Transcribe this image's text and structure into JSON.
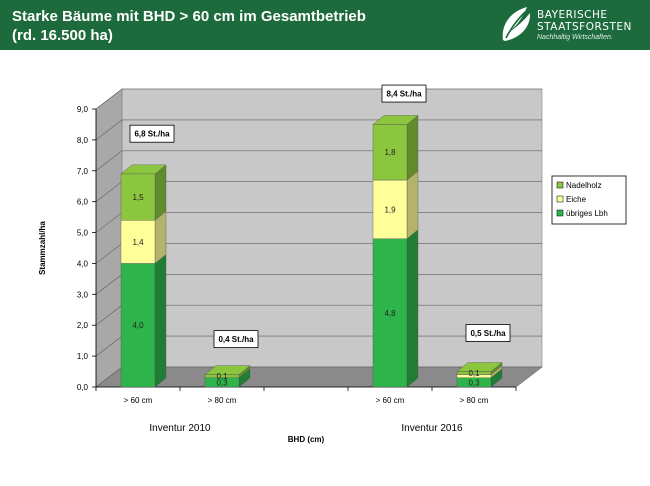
{
  "header": {
    "title_line1": "Starke Bäume mit BHD > 60 cm im Gesamtbetrieb",
    "title_line2": "(rd. 16.500 ha)",
    "logo_line1": "BAYERISCHE",
    "logo_line2": "STAATSFORSTEN",
    "logo_tagline": "Nachhaltig Wirtschaften."
  },
  "colors": {
    "header_bg": "#1d6b3d",
    "uebriges_lbh": "#2db44a",
    "eiche": "#ffff99",
    "nadelholz": "#8cc63f"
  },
  "chart_data": {
    "type": "bar",
    "stacked": true,
    "three_d": true,
    "categories": [
      "> 60 cm",
      "> 80 cm",
      "> 60 cm",
      "> 80 cm"
    ],
    "groups": [
      {
        "label": "Inventur 2010",
        "categories": [
          0,
          1
        ]
      },
      {
        "label": "Inventur 2016",
        "categories": [
          2,
          3
        ]
      }
    ],
    "series": [
      {
        "name": "übriges Lbh",
        "values": [
          4.0,
          0.3,
          4.8,
          0.3
        ],
        "labels": [
          "4,0",
          "0,3",
          "4,8",
          "0,3"
        ]
      },
      {
        "name": "Eiche",
        "values": [
          1.4,
          0.0,
          1.9,
          0.1
        ],
        "labels": [
          "1,4",
          "",
          "1,9",
          ""
        ]
      },
      {
        "name": "Nadelholz",
        "values": [
          1.5,
          0.1,
          1.8,
          0.1
        ],
        "labels": [
          "1,5",
          "0,1",
          "1,8",
          "0,1"
        ]
      }
    ],
    "totals_labels": [
      "6,8 St./ha",
      "0,4 St./ha",
      "8,4 St./ha",
      "0,5 St./ha"
    ],
    "ylabel": "Stammzahl/ha",
    "xlabel": "BHD (cm)",
    "ylim": [
      0,
      9
    ],
    "yticks": [
      "0,0",
      "1,0",
      "2,0",
      "3,0",
      "4,0",
      "5,0",
      "6,0",
      "7,0",
      "8,0",
      "9,0"
    ],
    "grid": true,
    "legend_position": "right",
    "legend_entries": [
      "Nadelholz",
      "Eiche",
      "übriges Lbh"
    ]
  }
}
